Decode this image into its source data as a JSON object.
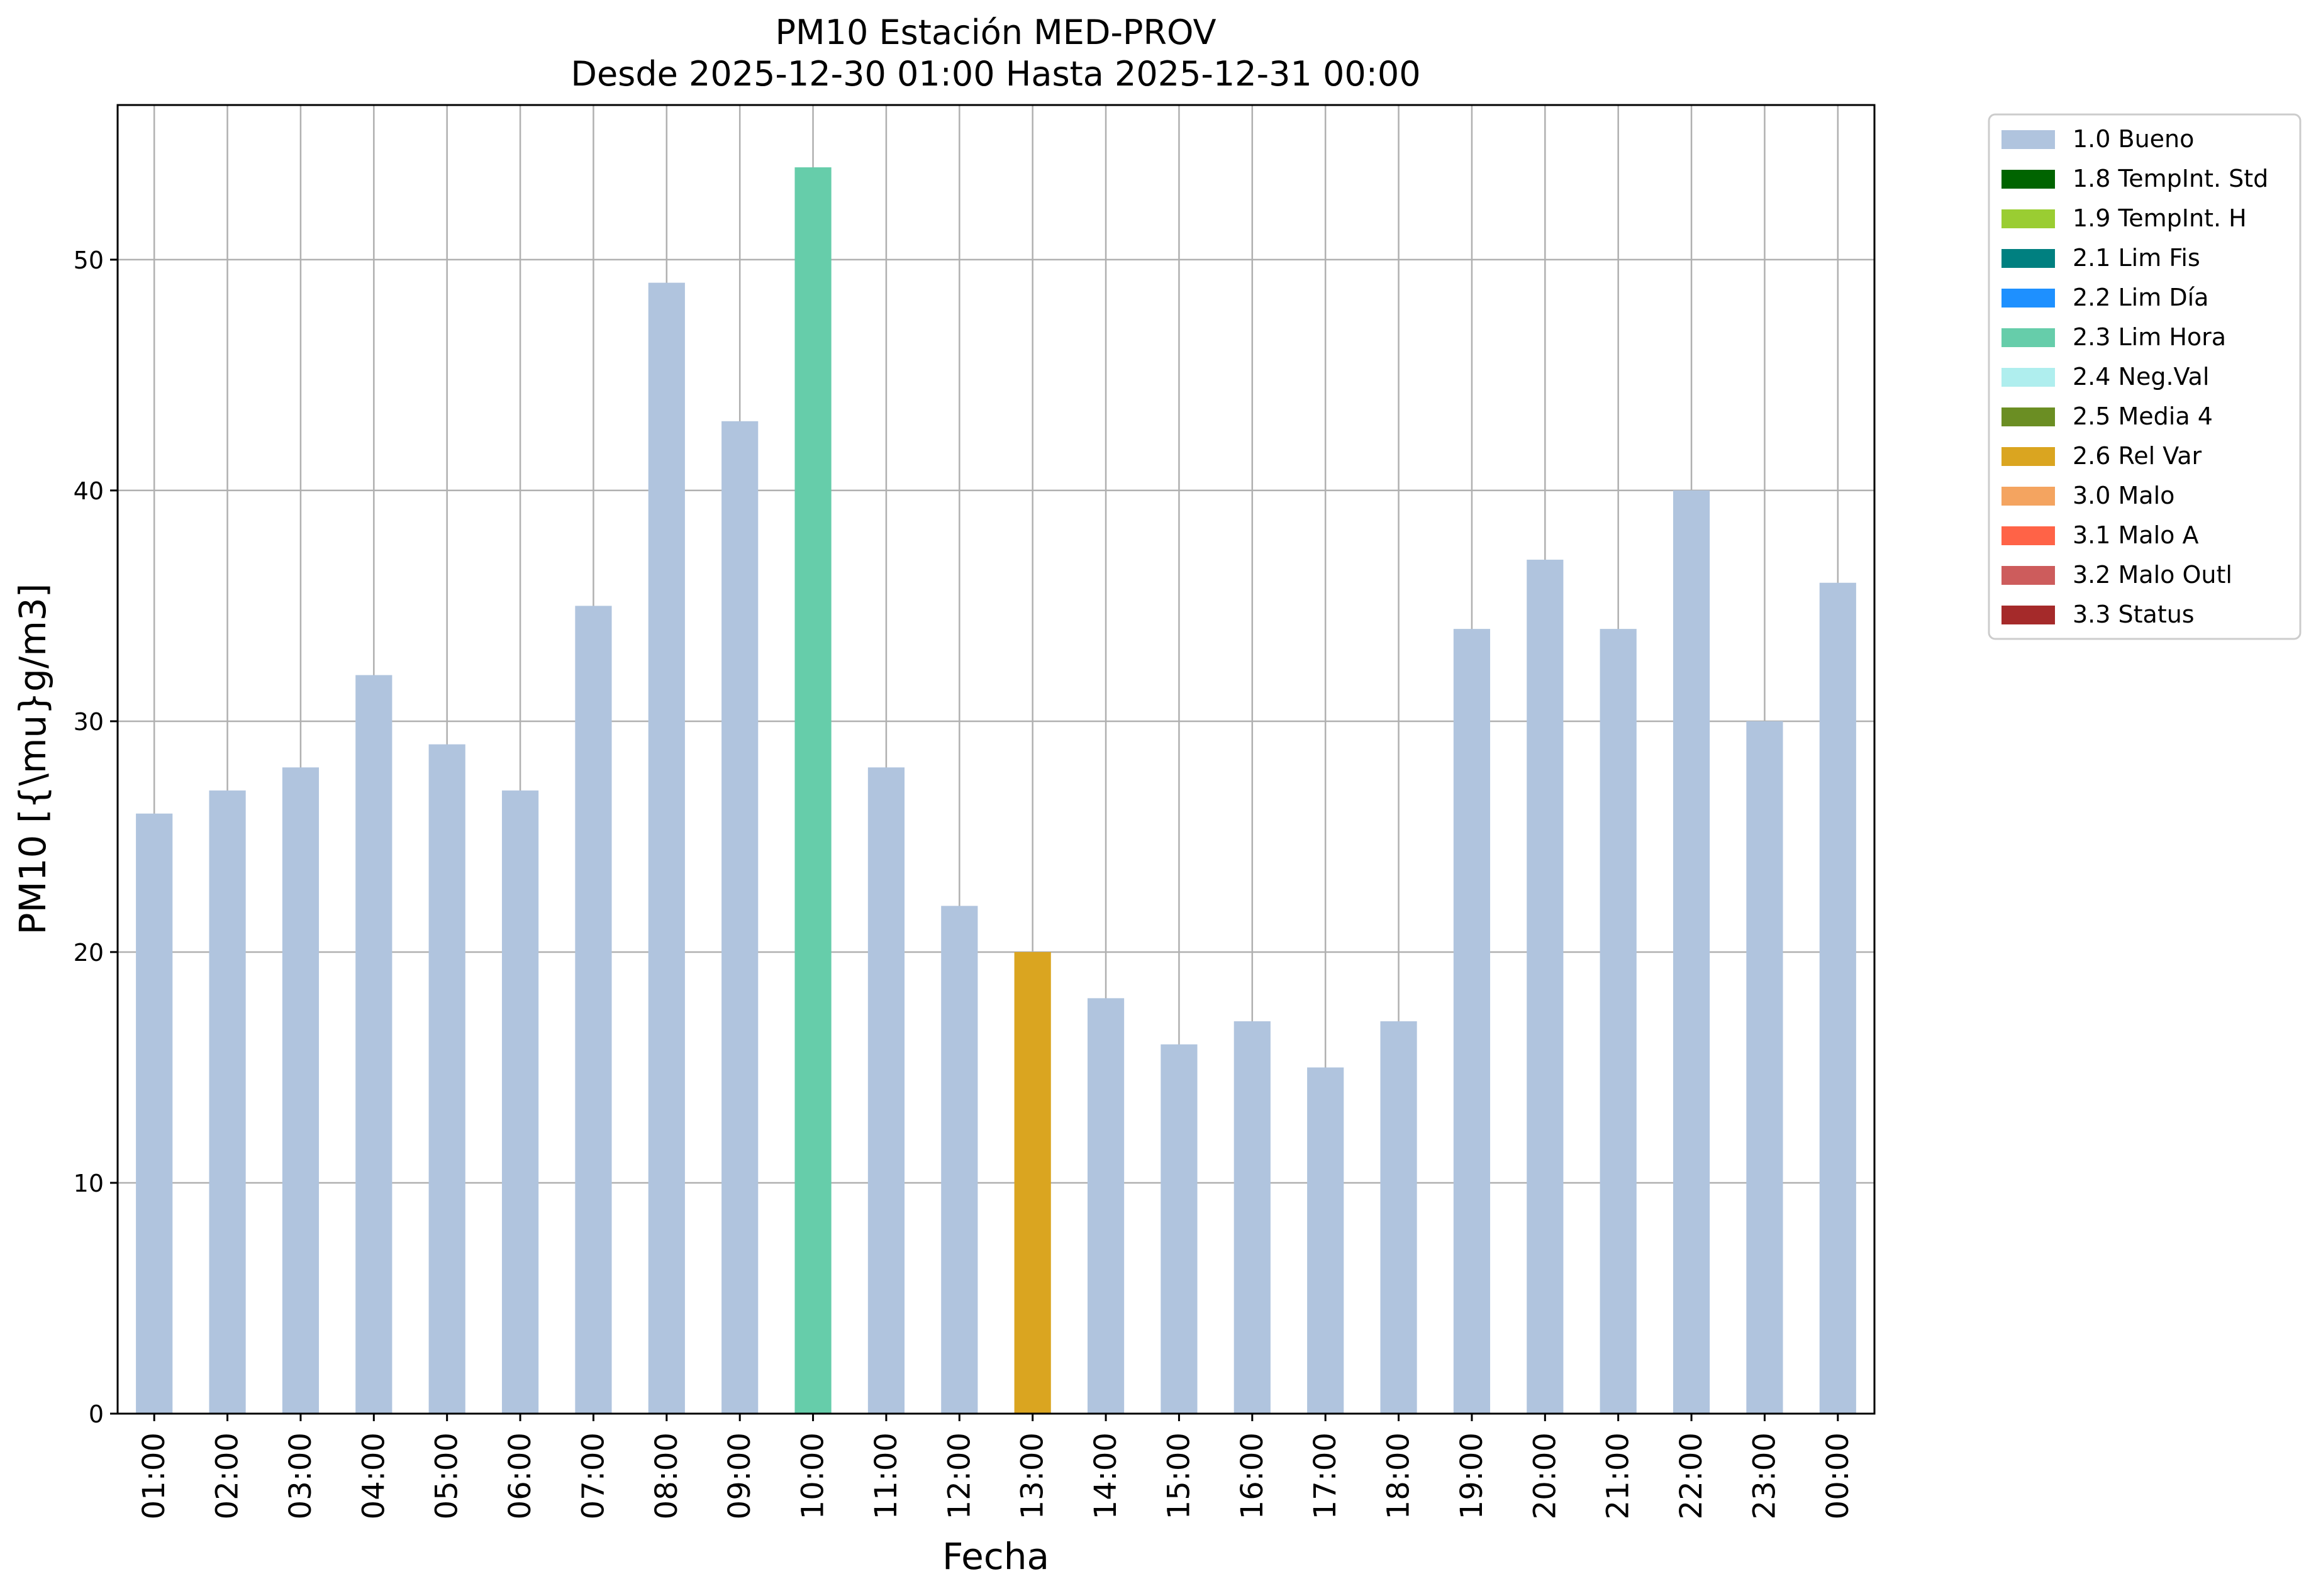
{
  "chart_data": {
    "type": "bar",
    "title": "PM10 Estación MED-PROV",
    "subtitle": "Desde 2025-12-30 01:00 Hasta 2025-12-31 00:00",
    "xlabel": "Fecha",
    "ylabel": "PM10 [{\\mu}g/m3]",
    "ylim": [
      0,
      56.7
    ],
    "yticks": [
      0,
      10,
      20,
      30,
      40,
      50
    ],
    "grid": true,
    "legend_position": "outside-top-right",
    "categories": [
      "01:00",
      "02:00",
      "03:00",
      "04:00",
      "05:00",
      "06:00",
      "07:00",
      "08:00",
      "09:00",
      "10:00",
      "11:00",
      "12:00",
      "13:00",
      "14:00",
      "15:00",
      "16:00",
      "17:00",
      "18:00",
      "19:00",
      "20:00",
      "21:00",
      "22:00",
      "23:00",
      "00:00"
    ],
    "values": [
      26,
      27,
      28,
      32,
      29,
      27,
      35,
      49,
      43,
      54,
      28,
      22,
      20,
      18,
      16,
      17,
      15,
      17,
      34,
      37,
      34,
      40,
      30,
      36
    ],
    "bar_flags": [
      "1.0 Bueno",
      "1.0 Bueno",
      "1.0 Bueno",
      "1.0 Bueno",
      "1.0 Bueno",
      "1.0 Bueno",
      "1.0 Bueno",
      "1.0 Bueno",
      "1.0 Bueno",
      "2.3 Lim Hora",
      "1.0 Bueno",
      "1.0 Bueno",
      "2.6 Rel Var",
      "1.0 Bueno",
      "1.0 Bueno",
      "1.0 Bueno",
      "1.0 Bueno",
      "1.0 Bueno",
      "1.0 Bueno",
      "1.0 Bueno",
      "1.0 Bueno",
      "1.0 Bueno",
      "1.0 Bueno",
      "1.0 Bueno"
    ],
    "legend": [
      {
        "label": "1.0 Bueno",
        "color": "#b0c4de"
      },
      {
        "label": "1.8 TempInt. Std",
        "color": "#006400"
      },
      {
        "label": "1.9 TempInt. H",
        "color": "#9acd32"
      },
      {
        "label": "2.1 Lim Fis",
        "color": "#008080"
      },
      {
        "label": "2.2 Lim Día",
        "color": "#1e90ff"
      },
      {
        "label": "2.3 Lim Hora",
        "color": "#66cdaa"
      },
      {
        "label": "2.4 Neg.Val",
        "color": "#afeeee"
      },
      {
        "label": "2.5 Media 4",
        "color": "#6b8e23"
      },
      {
        "label": "2.6 Rel Var",
        "color": "#daa520"
      },
      {
        "label": "3.0 Malo",
        "color": "#f4a460"
      },
      {
        "label": "3.1 Malo A",
        "color": "#ff6347"
      },
      {
        "label": "3.2 Malo Outl",
        "color": "#cd5c5c"
      },
      {
        "label": "3.3 Status",
        "color": "#a52a2a"
      }
    ],
    "grid_color": "#b0b0b0"
  }
}
